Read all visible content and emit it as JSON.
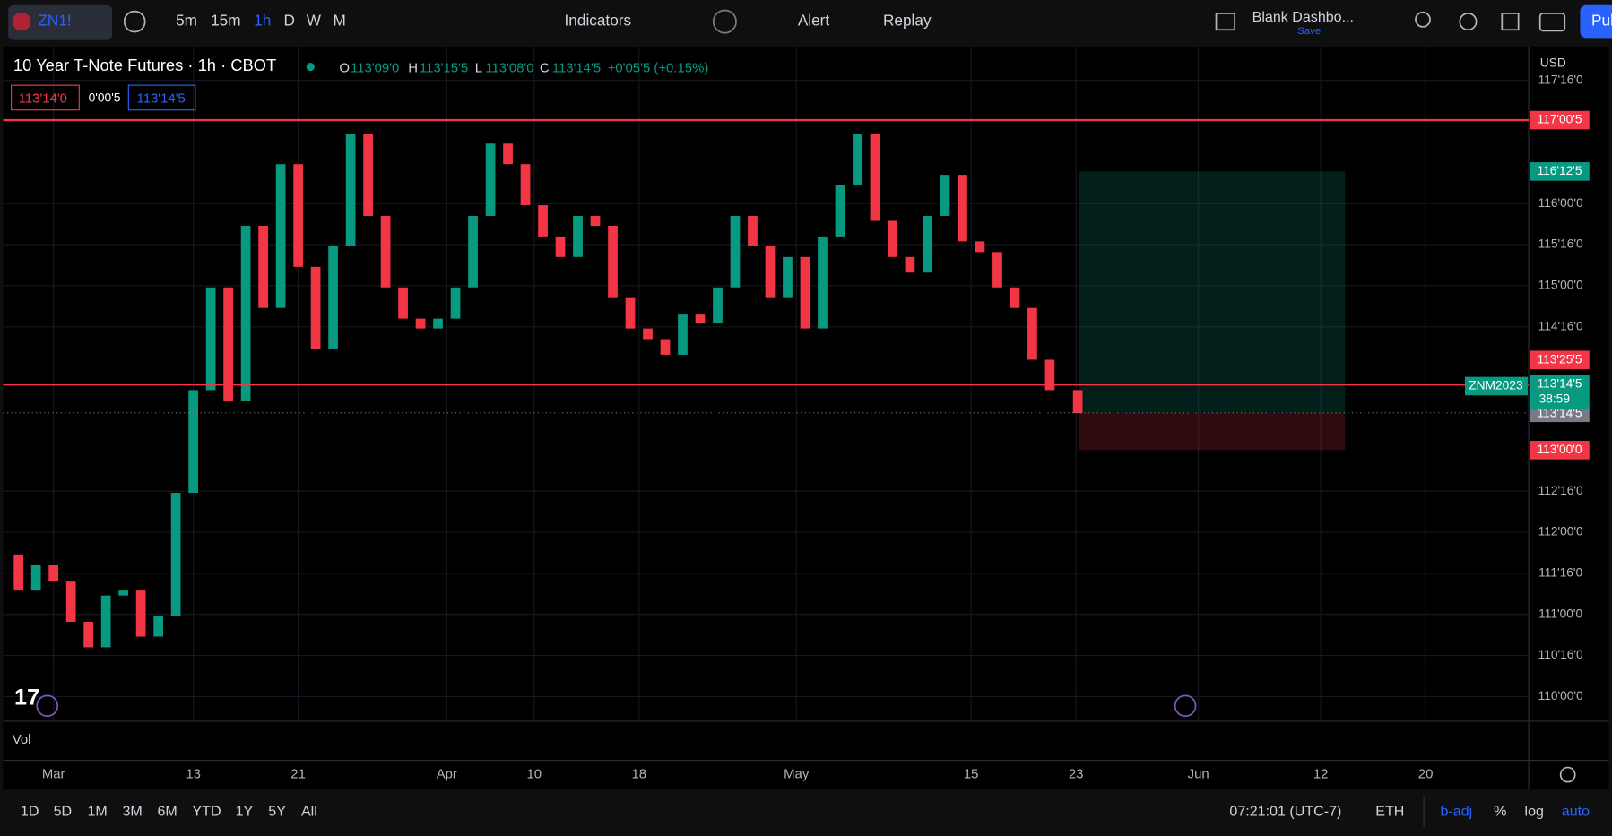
{
  "top_toolbar": {
    "symbol": "ZN1!",
    "intervals": [
      "5m",
      "15m",
      "1h",
      "D",
      "W",
      "M"
    ],
    "indicators": "Indicators",
    "alert": "Alert",
    "replay": "Replay",
    "layout_name": "Blank Dashbo...",
    "layout_save": "Save",
    "publish": "Publish"
  },
  "legend": {
    "title": "10 Year T-Note Futures · 1h · CBOT",
    "ohlc": [
      {
        "key": "O",
        "value": "113'09'0"
      },
      {
        "key": "H",
        "value": "113'15'5"
      },
      {
        "key": "L",
        "value": "113'08'0"
      },
      {
        "key": "C",
        "value": "113'14'5"
      }
    ],
    "change": "+0'05'5 (+0.15%)",
    "bid": "113'14'0",
    "spread": "0'00'5",
    "ask": "113'14'5"
  },
  "currency": "USD",
  "chart_data": {
    "type": "candlestick",
    "up_color": "#089981",
    "down_color": "#f23645",
    "x": [
      -3,
      -2,
      -1,
      0,
      1,
      2,
      3,
      4,
      5,
      6,
      7,
      8,
      9,
      10,
      11,
      12,
      13,
      14,
      15,
      16,
      17,
      18,
      19,
      20,
      21,
      22,
      23,
      24,
      25,
      26,
      27,
      28,
      29,
      30,
      31,
      32,
      33,
      34,
      35,
      36,
      37,
      38,
      39,
      40,
      41,
      42,
      43,
      44,
      45,
      46,
      47,
      48,
      49,
      50,
      51,
      52,
      53,
      54,
      55,
      56,
      57,
      58.6
    ],
    "values": [
      111.73,
      111.29,
      111.6,
      111.41,
      110.91,
      110.6,
      111.23,
      111.29,
      110.73,
      110.98,
      112.48,
      113.73,
      114.98,
      113.6,
      115.73,
      114.73,
      116.48,
      115.23,
      114.23,
      115.48,
      116.85,
      115.85,
      114.98,
      114.6,
      114.48,
      114.6,
      114.98,
      115.85,
      116.73,
      116.48,
      115.98,
      115.6,
      115.35,
      115.85,
      115.73,
      114.85,
      114.48,
      114.35,
      114.16,
      114.66,
      114.54,
      114.98,
      115.85,
      115.48,
      114.85,
      115.35,
      114.48,
      115.6,
      116.23,
      116.85,
      115.79,
      115.35,
      115.16,
      115.85,
      116.35,
      115.54,
      115.41,
      114.98,
      114.73,
      114.1,
      113.73,
      113.45
    ],
    "xlim": [
      -3.06,
      84.4
    ],
    "xticks": [
      {
        "value": 0,
        "label": "Mar"
      },
      {
        "value": 8,
        "label": "13"
      },
      {
        "value": 14,
        "label": "21"
      },
      {
        "value": 22.5,
        "label": "Apr"
      },
      {
        "value": 27.5,
        "label": "10"
      },
      {
        "value": 33.5,
        "label": "18"
      },
      {
        "value": 42.5,
        "label": "May"
      },
      {
        "value": 52.5,
        "label": "15"
      },
      {
        "value": 58.5,
        "label": "23"
      },
      {
        "value": 65.5,
        "label": "Jun"
      },
      {
        "value": 72.5,
        "label": "12"
      },
      {
        "value": 78.5,
        "label": "20"
      }
    ],
    "ylim": [
      109.725,
      117.89
    ],
    "yticks": [
      {
        "value": 110,
        "label": "110'00'0"
      },
      {
        "value": 110.5,
        "label": "110'16'0"
      },
      {
        "value": 111,
        "label": "111'00'0"
      },
      {
        "value": 111.5,
        "label": "111'16'0"
      },
      {
        "value": 112,
        "label": "112'00'0"
      },
      {
        "value": 112.5,
        "label": "112'16'0"
      },
      {
        "value": 114.5,
        "label": "114'16'0"
      },
      {
        "value": 115,
        "label": "115'00'0"
      },
      {
        "value": 115.5,
        "label": "115'16'0"
      },
      {
        "value": 116,
        "label": "116'00'0"
      },
      {
        "value": 117.5,
        "label": "117'16'0"
      }
    ],
    "hlines": [
      {
        "value": 117.0156,
        "label": "117'00'5",
        "color": "#f23645"
      },
      {
        "value": 113.7969,
        "label": "113'25'5",
        "color": "#f23645"
      }
    ],
    "position": {
      "x": [
        58.7,
        73.9
      ],
      "target": {
        "value": 116.3906,
        "label": "116'12'5"
      },
      "entry": {
        "value": 113.4531,
        "label": "113'14'5"
      },
      "stop": {
        "value": 113,
        "label": "113'00'0"
      }
    },
    "last_price": {
      "symbol": "ZNM2023",
      "value": 113.4531,
      "label": "113'14'5",
      "countdown": "38:59"
    }
  },
  "volume_pane": "Vol",
  "bottom_toolbar": {
    "ranges": [
      "1D",
      "5D",
      "1M",
      "3M",
      "6M",
      "YTD",
      "1Y",
      "5Y",
      "All"
    ],
    "time": "07:21:01 (UTC-7)",
    "session": "ETH",
    "options": [
      "b-adj",
      "%",
      "log",
      "auto"
    ]
  }
}
